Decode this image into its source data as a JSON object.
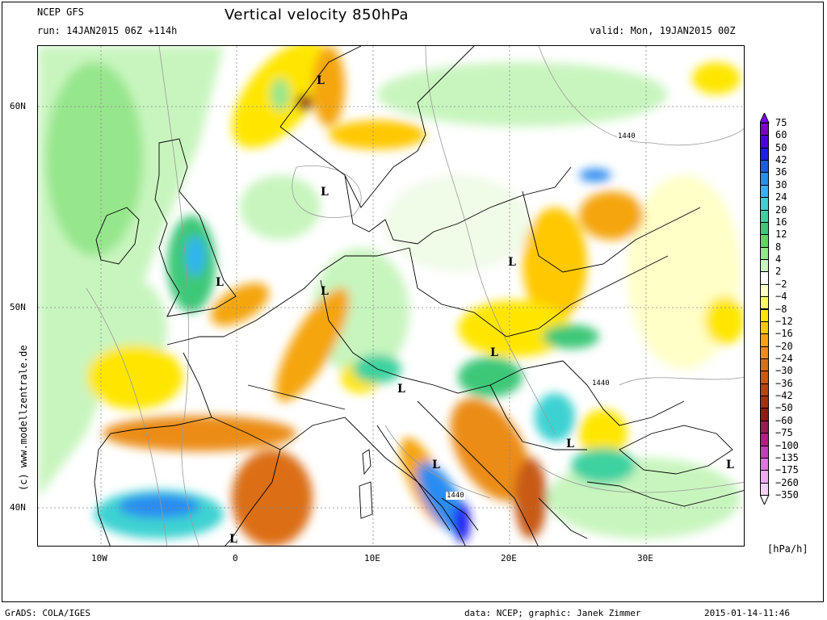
{
  "header": {
    "model": "NCEP GFS",
    "run": "run: 14JAN2015 06Z +114h",
    "title": "Vertical velocity 850hPa",
    "valid": "valid: Mon, 19JAN2015 00Z"
  },
  "axes": {
    "lat_labels": [
      "60N",
      "50N",
      "40N"
    ],
    "lon_labels": [
      "10W",
      "0",
      "10E",
      "20E",
      "30E"
    ]
  },
  "pressure_marks": [
    "L",
    "L",
    "L",
    "L",
    "L",
    "L",
    "L",
    "L",
    "L",
    "L",
    "L"
  ],
  "contour_labels": [
    "1440",
    "1440",
    "1440"
  ],
  "legend": {
    "unit": "[hPa/h]",
    "labels": [
      "75",
      "60",
      "50",
      "42",
      "36",
      "30",
      "24",
      "20",
      "16",
      "12",
      "8",
      "4",
      "2",
      "−2",
      "−4",
      "−8",
      "−12",
      "−16",
      "−20",
      "−24",
      "−30",
      "−36",
      "−42",
      "−50",
      "−60",
      "−75",
      "−100",
      "−135",
      "−175",
      "−260",
      "−350"
    ],
    "colors": [
      "#7a00cc",
      "#4b00e6",
      "#1e1ef0",
      "#1e5ae6",
      "#2a8cf0",
      "#32b4f0",
      "#3cd2d2",
      "#3cd2a0",
      "#3cc878",
      "#64d264",
      "#96e68c",
      "#c8f5be",
      "#ffffff",
      "#ffffc8",
      "#ffff64",
      "#ffe600",
      "#ffc800",
      "#f5a50a",
      "#eb8c14",
      "#dc6e14",
      "#c85a14",
      "#b44614",
      "#a03214",
      "#8c1e14",
      "#961e50",
      "#b41e82",
      "#c83cb4",
      "#dc78dc",
      "#f0aaf0",
      "#f5d2f5"
    ],
    "top_triangle": "#8000ff",
    "bottom_triangle": "#ffffff"
  },
  "footer": {
    "left": "GrADS: COLA/IGES",
    "center": "data: NCEP; graphic: Janek Zimmer",
    "right": "2015-01-14-11:46",
    "side": "(c)  www.modellzentrale.de"
  }
}
